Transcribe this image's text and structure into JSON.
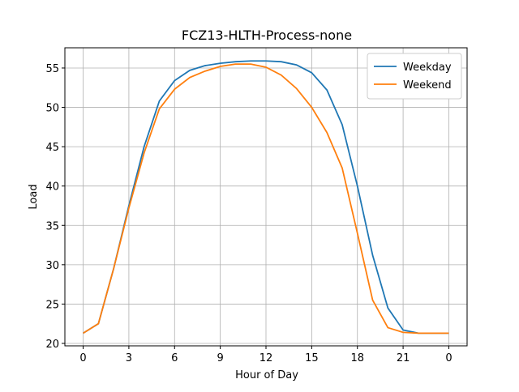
{
  "chart_data": {
    "type": "line",
    "title": "FCZ13-HLTH-Process-none",
    "x_label": "Hour of Day",
    "y_label": "Load",
    "x": [
      0,
      1,
      2,
      3,
      4,
      5,
      6,
      7,
      8,
      9,
      10,
      11,
      12,
      13,
      14,
      15,
      16,
      17,
      18,
      19,
      20,
      21,
      22,
      23,
      24
    ],
    "series": [
      {
        "name": "Weekday",
        "color": "#1f77b4",
        "values": [
          21.3,
          22.5,
          29.5,
          37.5,
          45,
          50.8,
          53.4,
          54.7,
          55.3,
          55.6,
          55.8,
          55.9,
          55.9,
          55.8,
          55.4,
          54.4,
          52.2,
          47.8,
          40,
          31.2,
          24.5,
          21.7,
          21.3,
          21.3,
          21.3
        ]
      },
      {
        "name": "Weekend",
        "color": "#ff7f0e",
        "values": [
          21.3,
          22.5,
          29.5,
          37.2,
          44.2,
          49.8,
          52.3,
          53.8,
          54.6,
          55.2,
          55.5,
          55.5,
          55.1,
          54.1,
          52.4,
          50,
          46.8,
          42.3,
          34,
          25.5,
          22,
          21.4,
          21.3,
          21.3,
          21.3
        ]
      }
    ],
    "xlim": [
      -1.2,
      25.2
    ],
    "ylim": [
      19.69,
      57.57
    ],
    "xticks": [
      0,
      3,
      6,
      9,
      12,
      15,
      18,
      21,
      {
        "value": 24,
        "label": "0"
      }
    ],
    "yticks": [
      20,
      25,
      30,
      35,
      40,
      45,
      50,
      55
    ],
    "grid": true,
    "legend": "upper right"
  }
}
